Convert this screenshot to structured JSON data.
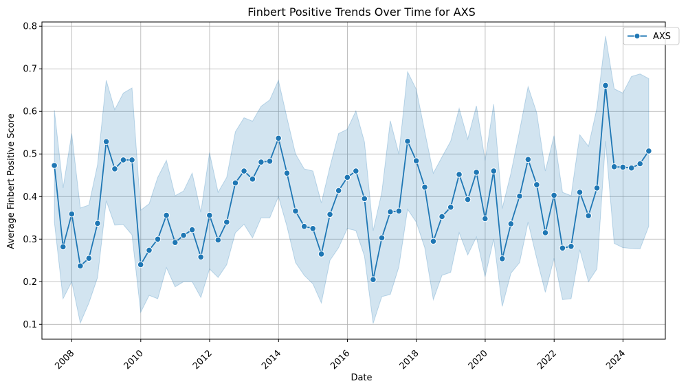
{
  "chart_data": {
    "type": "line",
    "title": "Finbert Positive Trends Over Time for AXS",
    "xlabel": "Date",
    "ylabel": "Average Finbert Positive Score",
    "x_ticks": [
      "2008",
      "2010",
      "2012",
      "2014",
      "2016",
      "2018",
      "2020",
      "2022",
      "2024"
    ],
    "y_ticks": [
      "0.1",
      "0.2",
      "0.3",
      "0.4",
      "0.5",
      "0.6",
      "0.7",
      "0.8"
    ],
    "xlim": [
      "2007-02-18",
      "2025-03-25"
    ],
    "ylim": [
      0.065,
      0.81
    ],
    "grid": true,
    "legend_position": "top-right",
    "line_color": "#1f77b4",
    "band_color": "#1f77b4",
    "series": [
      {
        "name": "AXS",
        "x": [
          "2007-06-30",
          "2007-09-30",
          "2007-12-31",
          "2008-03-31",
          "2008-06-30",
          "2008-09-30",
          "2008-12-31",
          "2009-03-31",
          "2009-06-30",
          "2009-09-30",
          "2009-12-31",
          "2010-03-31",
          "2010-06-30",
          "2010-09-30",
          "2010-12-31",
          "2011-03-31",
          "2011-06-30",
          "2011-09-30",
          "2011-12-31",
          "2012-03-31",
          "2012-06-30",
          "2012-09-30",
          "2012-12-31",
          "2013-03-31",
          "2013-06-30",
          "2013-09-30",
          "2013-12-31",
          "2014-03-31",
          "2014-06-30",
          "2014-09-30",
          "2014-12-31",
          "2015-03-31",
          "2015-06-30",
          "2015-09-30",
          "2015-12-31",
          "2016-03-31",
          "2016-06-30",
          "2016-09-30",
          "2016-12-31",
          "2017-03-31",
          "2017-06-30",
          "2017-09-30",
          "2017-12-31",
          "2018-03-31",
          "2018-06-30",
          "2018-09-30",
          "2018-12-31",
          "2019-03-31",
          "2019-06-30",
          "2019-09-30",
          "2019-12-31",
          "2020-03-31",
          "2020-06-30",
          "2020-09-30",
          "2020-12-31",
          "2021-03-31",
          "2021-06-30",
          "2021-09-30",
          "2021-12-31",
          "2022-03-31",
          "2022-06-30",
          "2022-09-30",
          "2022-12-31",
          "2023-03-31",
          "2023-06-30",
          "2023-09-30",
          "2023-12-31",
          "2024-03-31",
          "2024-06-30",
          "2024-09-30"
        ],
        "y": [
          0.473,
          0.282,
          0.359,
          0.237,
          0.255,
          0.337,
          0.529,
          0.465,
          0.486,
          0.486,
          0.24,
          0.274,
          0.3,
          0.356,
          0.292,
          0.309,
          0.322,
          0.258,
          0.356,
          0.298,
          0.34,
          0.432,
          0.46,
          0.441,
          0.481,
          0.483,
          0.537,
          0.455,
          0.366,
          0.33,
          0.325,
          0.265,
          0.358,
          0.414,
          0.445,
          0.46,
          0.395,
          0.205,
          0.303,
          0.364,
          0.366,
          0.53,
          0.484,
          0.422,
          0.295,
          0.353,
          0.375,
          0.452,
          0.393,
          0.457,
          0.348,
          0.46,
          0.254,
          0.336,
          0.401,
          0.487,
          0.428,
          0.315,
          0.403,
          0.279,
          0.283,
          0.41,
          0.355,
          0.42,
          0.661,
          0.47,
          0.469,
          0.467,
          0.477,
          0.507
        ],
        "ci_lower": [
          0.34,
          0.16,
          0.2,
          0.103,
          0.15,
          0.21,
          0.39,
          0.333,
          0.334,
          0.31,
          0.128,
          0.168,
          0.16,
          0.233,
          0.188,
          0.2,
          0.2,
          0.163,
          0.23,
          0.21,
          0.24,
          0.315,
          0.335,
          0.303,
          0.35,
          0.35,
          0.4,
          0.33,
          0.245,
          0.215,
          0.195,
          0.15,
          0.25,
          0.28,
          0.325,
          0.32,
          0.26,
          0.102,
          0.165,
          0.17,
          0.235,
          0.37,
          0.34,
          0.28,
          0.158,
          0.215,
          0.222,
          0.315,
          0.263,
          0.305,
          0.212,
          0.3,
          0.142,
          0.22,
          0.245,
          0.34,
          0.255,
          0.175,
          0.255,
          0.158,
          0.16,
          0.275,
          0.2,
          0.23,
          0.53,
          0.29,
          0.28,
          0.278,
          0.277,
          0.33
        ],
        "ci_upper": [
          0.603,
          0.42,
          0.548,
          0.373,
          0.38,
          0.475,
          0.673,
          0.604,
          0.643,
          0.655,
          0.368,
          0.383,
          0.445,
          0.485,
          0.402,
          0.413,
          0.455,
          0.363,
          0.503,
          0.41,
          0.445,
          0.552,
          0.585,
          0.577,
          0.612,
          0.627,
          0.673,
          0.585,
          0.5,
          0.465,
          0.46,
          0.385,
          0.47,
          0.548,
          0.558,
          0.601,
          0.528,
          0.32,
          0.41,
          0.578,
          0.5,
          0.693,
          0.652,
          0.553,
          0.455,
          0.493,
          0.53,
          0.607,
          0.535,
          0.613,
          0.485,
          0.617,
          0.372,
          0.455,
          0.555,
          0.658,
          0.597,
          0.46,
          0.543,
          0.41,
          0.402,
          0.545,
          0.518,
          0.608,
          0.777,
          0.653,
          0.643,
          0.682,
          0.688,
          0.677
        ]
      }
    ]
  }
}
